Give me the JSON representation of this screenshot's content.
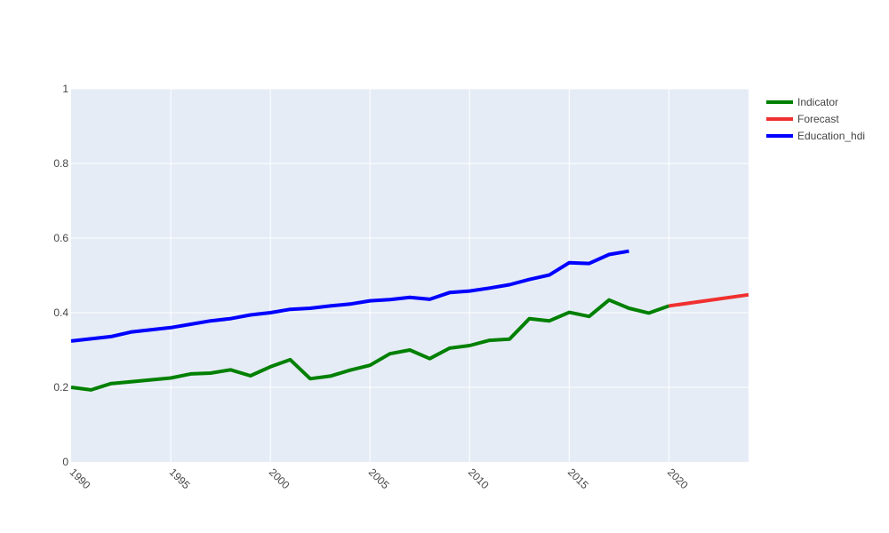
{
  "chart_data": {
    "type": "line",
    "title": "",
    "xlabel": "",
    "ylabel": "",
    "xlim": [
      1990,
      2024
    ],
    "ylim": [
      0,
      1
    ],
    "x_ticks": [
      1990,
      1995,
      2000,
      2005,
      2010,
      2015,
      2020
    ],
    "y_ticks": [
      0,
      0.2,
      0.4,
      0.6,
      0.8,
      1
    ],
    "y_tick_labels": [
      "0",
      "0.2",
      "0.4",
      "0.6",
      "0.8",
      "1"
    ],
    "grid": true,
    "legend_position": "top-right",
    "series": [
      {
        "name": "Indicator",
        "color": "#008000",
        "x": [
          1990,
          1991,
          1992,
          1993,
          1994,
          1995,
          1996,
          1997,
          1998,
          1999,
          2000,
          2001,
          2002,
          2003,
          2004,
          2005,
          2006,
          2007,
          2008,
          2009,
          2010,
          2011,
          2012,
          2013,
          2014,
          2015,
          2016,
          2017,
          2018,
          2019,
          2020
        ],
        "y": [
          0.2,
          0.193,
          0.21,
          0.215,
          0.22,
          0.225,
          0.236,
          0.238,
          0.247,
          0.231,
          0.255,
          0.274,
          0.223,
          0.23,
          0.246,
          0.259,
          0.29,
          0.3,
          0.277,
          0.305,
          0.312,
          0.326,
          0.329,
          0.384,
          0.378,
          0.401,
          0.39,
          0.434,
          0.412,
          0.399,
          0.418
        ]
      },
      {
        "name": "Forecast",
        "color": "#f03030",
        "x": [
          2020,
          2024
        ],
        "y": [
          0.418,
          0.448
        ]
      },
      {
        "name": "Education_hdi",
        "color": "#0000ff",
        "x": [
          1990,
          1991,
          1992,
          1993,
          1994,
          1995,
          1996,
          1997,
          1998,
          1999,
          2000,
          2001,
          2002,
          2003,
          2004,
          2005,
          2006,
          2007,
          2008,
          2009,
          2010,
          2011,
          2012,
          2013,
          2014,
          2015,
          2016,
          2017,
          2018
        ],
        "y": [
          0.324,
          0.33,
          0.336,
          0.348,
          0.354,
          0.36,
          0.369,
          0.378,
          0.384,
          0.394,
          0.4,
          0.409,
          0.412,
          0.418,
          0.423,
          0.432,
          0.435,
          0.441,
          0.436,
          0.454,
          0.458,
          0.466,
          0.475,
          0.489,
          0.501,
          0.534,
          0.532,
          0.556,
          0.565
        ]
      }
    ]
  }
}
